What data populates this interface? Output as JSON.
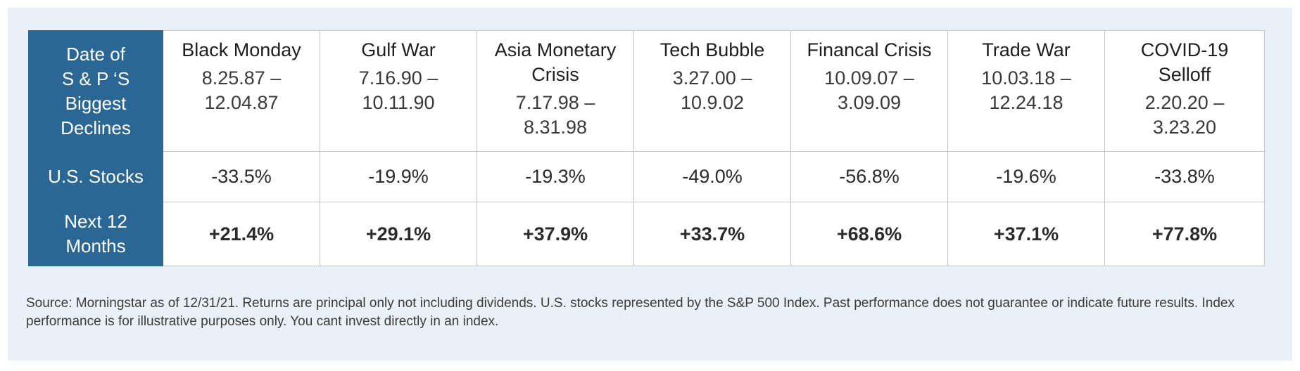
{
  "table": {
    "header_row_label": [
      "Date of",
      "S & P ‘S",
      "Biggest",
      "Declines"
    ],
    "stocks_row_label": "U.S. Stocks",
    "next_row_label": [
      "Next 12",
      "Months"
    ],
    "events": [
      {
        "name": [
          "Black Monday"
        ],
        "date": [
          "8.25.87 –",
          "12.04.87"
        ],
        "us_stocks": "-33.5%",
        "next_12_months": "+21.4%"
      },
      {
        "name": [
          "Gulf War"
        ],
        "date": [
          "7.16.90 –",
          "10.11.90"
        ],
        "us_stocks": "-19.9%",
        "next_12_months": "+29.1%"
      },
      {
        "name": [
          "Asia Monetary",
          "Crisis"
        ],
        "date": [
          "7.17.98 –",
          "8.31.98"
        ],
        "us_stocks": "-19.3%",
        "next_12_months": "+37.9%"
      },
      {
        "name": [
          "Tech Bubble"
        ],
        "date": [
          "3.27.00 –",
          "10.9.02"
        ],
        "us_stocks": "-49.0%",
        "next_12_months": "+33.7%"
      },
      {
        "name": [
          "Financal Crisis"
        ],
        "date": [
          "10.09.07 –",
          "3.09.09"
        ],
        "us_stocks": "-56.8%",
        "next_12_months": "+68.6%"
      },
      {
        "name": [
          "Trade War"
        ],
        "date": [
          "10.03.18 –",
          "12.24.18"
        ],
        "us_stocks": "-19.6%",
        "next_12_months": "+37.1%"
      },
      {
        "name": [
          "COVID-19",
          "Selloff"
        ],
        "date": [
          "2.20.20 –",
          "3.23.20"
        ],
        "us_stocks": "-33.8%",
        "next_12_months": "+77.8%"
      }
    ]
  },
  "footnote": "Source: Morningstar as of 12/31/21. Returns are principal only not including dividends. U.S. stocks represented by the S&P 500 Index. Past performance does not guarantee or indicate future results. Index performance is for illustrative purposes only. You cant invest directly in an index.",
  "colors": {
    "header_column": "#2a6795",
    "panel_background": "#e9f0f7",
    "cell_border": "#c3c3c3"
  }
}
